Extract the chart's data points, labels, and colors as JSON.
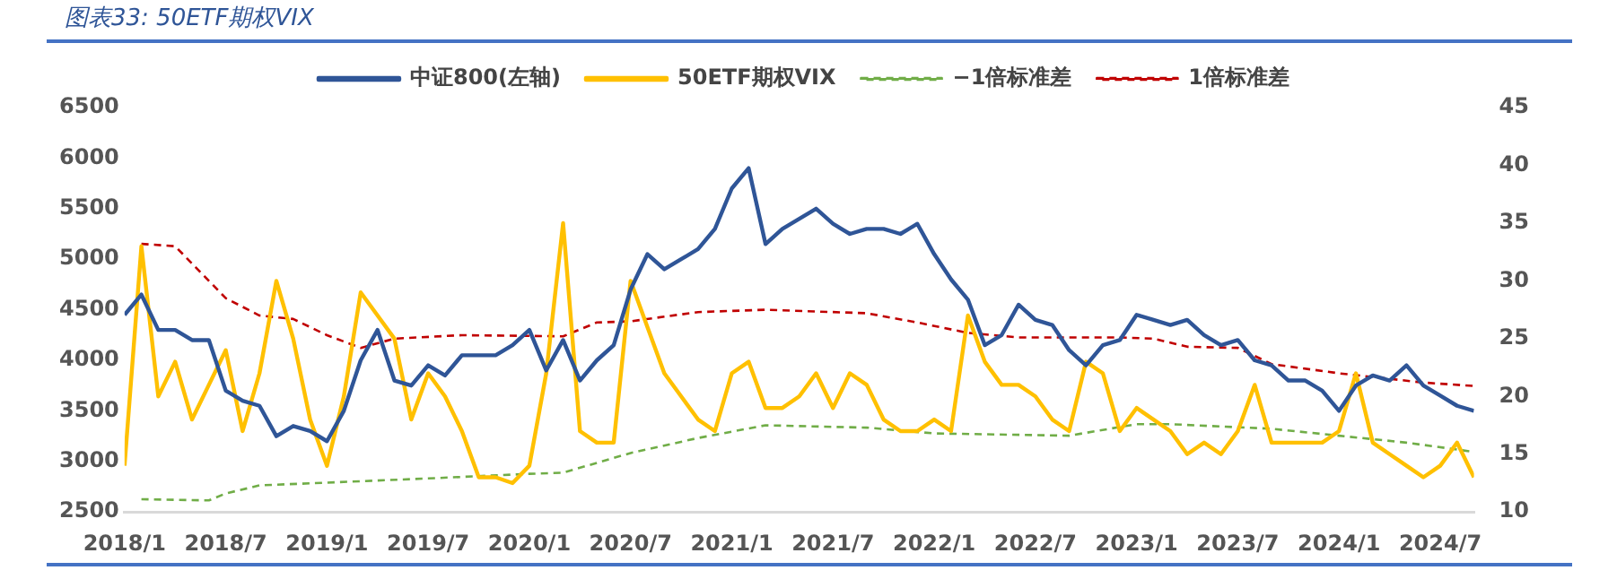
{
  "chart_data": {
    "type": "line",
    "title": "图表33: 50ETF期权VIX",
    "legend": "top",
    "grid": false,
    "line_style": "solid",
    "marker": "none",
    "xlim": [
      "2018-01",
      "2024-09"
    ],
    "xticks": [
      {
        "value": "2018-01",
        "label": "2018/1"
      },
      {
        "value": "2018-07",
        "label": "2018/7"
      },
      {
        "value": "2019-01",
        "label": "2019/1"
      },
      {
        "value": "2019-07",
        "label": "2019/7"
      },
      {
        "value": "2020-01",
        "label": "2020/1"
      },
      {
        "value": "2020-07",
        "label": "2020/7"
      },
      {
        "value": "2021-01",
        "label": "2021/1"
      },
      {
        "value": "2021-07",
        "label": "2021/7"
      },
      {
        "value": "2022-01",
        "label": "2022/1"
      },
      {
        "value": "2022-07",
        "label": "2022/7"
      },
      {
        "value": "2023-01",
        "label": "2023/1"
      },
      {
        "value": "2023-07",
        "label": "2023/7"
      },
      {
        "value": "2024-01",
        "label": "2024/1"
      },
      {
        "value": "2024-07",
        "label": "2024/7"
      }
    ],
    "ylim": [
      2500,
      6500
    ],
    "yticks": [
      2500,
      3000,
      3500,
      4000,
      4500,
      5000,
      5500,
      6000,
      6500
    ],
    "y2lim": [
      10,
      45
    ],
    "y2ticks": [
      10,
      15,
      20,
      25,
      30,
      35,
      40,
      45
    ],
    "series": [
      {
        "name": "中证800(左轴)",
        "color": "#2f5597",
        "x": [
          "2018-01",
          "2018-02",
          "2018-03",
          "2018-04",
          "2018-05",
          "2018-06",
          "2018-07",
          "2018-08",
          "2018-09",
          "2018-10",
          "2018-11",
          "2018-12",
          "2019-01",
          "2019-02",
          "2019-03",
          "2019-04",
          "2019-05",
          "2019-06",
          "2019-07",
          "2019-08",
          "2019-09",
          "2019-10",
          "2019-11",
          "2019-12",
          "2020-01",
          "2020-02",
          "2020-03",
          "2020-04",
          "2020-05",
          "2020-06",
          "2020-07",
          "2020-08",
          "2020-09",
          "2020-10",
          "2020-11",
          "2020-12",
          "2021-01",
          "2021-02",
          "2021-03",
          "2021-04",
          "2021-05",
          "2021-06",
          "2021-07",
          "2021-08",
          "2021-09",
          "2021-10",
          "2021-11",
          "2021-12",
          "2022-01",
          "2022-02",
          "2022-03",
          "2022-04",
          "2022-05",
          "2022-06",
          "2022-07",
          "2022-08",
          "2022-09",
          "2022-10",
          "2022-11",
          "2022-12",
          "2023-01",
          "2023-02",
          "2023-03",
          "2023-04",
          "2023-05",
          "2023-06",
          "2023-07",
          "2023-08",
          "2023-09",
          "2023-10",
          "2023-11",
          "2023-12",
          "2024-01",
          "2024-02",
          "2024-03",
          "2024-04",
          "2024-05",
          "2024-06",
          "2024-07",
          "2024-08",
          "2024-09"
        ],
        "values": [
          4450,
          4650,
          4300,
          4300,
          4200,
          4200,
          3700,
          3600,
          3550,
          3250,
          3350,
          3300,
          3200,
          3500,
          4000,
          4300,
          3800,
          3750,
          3950,
          3850,
          4050,
          4050,
          4050,
          4150,
          4300,
          3900,
          4200,
          3800,
          4000,
          4150,
          4700,
          5050,
          4900,
          5000,
          5100,
          5300,
          5700,
          5900,
          5150,
          5300,
          5400,
          5500,
          5350,
          5250,
          5300,
          5300,
          5250,
          5350,
          5050,
          4800,
          4600,
          4150,
          4250,
          4550,
          4400,
          4350,
          4100,
          3950,
          4150,
          4200,
          4450,
          4400,
          4350,
          4400,
          4250,
          4150,
          4200,
          4000,
          3950,
          3800,
          3800,
          3700,
          3500,
          3750,
          3850,
          3800,
          3950,
          3750,
          3650,
          3550,
          3500
        ]
      },
      {
        "name": "50ETF期权VIX",
        "color": "#ffc000",
        "axis": "y2",
        "x": [
          "2018-01",
          "2018-02",
          "2018-03",
          "2018-04",
          "2018-05",
          "2018-06",
          "2018-07",
          "2018-08",
          "2018-09",
          "2018-10",
          "2018-11",
          "2018-12",
          "2019-01",
          "2019-02",
          "2019-03",
          "2019-04",
          "2019-05",
          "2019-06",
          "2019-07",
          "2019-08",
          "2019-09",
          "2019-10",
          "2019-11",
          "2019-12",
          "2020-01",
          "2020-02",
          "2020-03",
          "2020-04",
          "2020-05",
          "2020-06",
          "2020-07",
          "2020-08",
          "2020-09",
          "2020-10",
          "2020-11",
          "2020-12",
          "2021-01",
          "2021-02",
          "2021-03",
          "2021-04",
          "2021-05",
          "2021-06",
          "2021-07",
          "2021-08",
          "2021-09",
          "2021-10",
          "2021-11",
          "2021-12",
          "2022-01",
          "2022-02",
          "2022-03",
          "2022-04",
          "2022-05",
          "2022-06",
          "2022-07",
          "2022-08",
          "2022-09",
          "2022-10",
          "2022-11",
          "2022-12",
          "2023-01",
          "2023-02",
          "2023-03",
          "2023-04",
          "2023-05",
          "2023-06",
          "2023-07",
          "2023-08",
          "2023-09",
          "2023-10",
          "2023-11",
          "2023-12",
          "2024-01",
          "2024-02",
          "2024-03",
          "2024-04",
          "2024-05",
          "2024-06",
          "2024-07",
          "2024-08",
          "2024-09"
        ],
        "values": [
          14,
          33,
          20,
          23,
          18,
          21,
          24,
          17,
          22,
          30,
          25,
          18,
          14,
          20,
          29,
          27,
          25,
          18,
          22,
          20,
          17,
          13,
          13,
          12.5,
          14,
          22,
          35,
          17,
          16,
          16,
          30,
          26,
          22,
          20,
          18,
          17,
          22,
          23,
          19,
          19,
          20,
          22,
          19,
          22,
          21,
          18,
          17,
          17,
          18,
          17,
          27,
          23,
          21,
          21,
          20,
          18,
          17,
          23,
          22,
          17,
          19,
          18,
          17,
          15,
          16,
          15,
          17,
          21,
          16,
          16,
          16,
          16,
          17,
          22,
          16,
          15,
          14,
          13,
          14,
          16,
          13
        ]
      },
      {
        "name": "−1倍标准差",
        "color": "#70ad47",
        "axis": "y2",
        "line_style": "dashed",
        "x": [
          "2018-02",
          "2018-06",
          "2018-07",
          "2018-09",
          "2019-07",
          "2020-01",
          "2020-03",
          "2020-07",
          "2020-11",
          "2021-03",
          "2021-09",
          "2022-01",
          "2022-09",
          "2023-01",
          "2023-03",
          "2023-09",
          "2024-01",
          "2024-05",
          "2024-09"
        ],
        "values": [
          11.1,
          11,
          11.6,
          12.3,
          12.9,
          13.3,
          13.4,
          15.1,
          16.4,
          17.5,
          17.3,
          16.8,
          16.6,
          17.6,
          17.6,
          17.2,
          16.6,
          16,
          15.2
        ]
      },
      {
        "name": "1倍标准差",
        "color": "#c00000",
        "axis": "y2",
        "line_style": "dashed",
        "x": [
          "2018-02",
          "2018-04",
          "2018-06",
          "2018-07",
          "2018-09",
          "2018-11",
          "2019-01",
          "2019-03",
          "2019-05",
          "2019-09",
          "2020-03",
          "2020-05",
          "2020-07",
          "2020-11",
          "2021-03",
          "2021-09",
          "2021-12",
          "2022-03",
          "2022-06",
          "2022-12",
          "2023-02",
          "2023-04",
          "2023-07",
          "2023-09",
          "2024-01",
          "2024-06",
          "2024-09"
        ],
        "values": [
          33.2,
          33,
          30,
          28.5,
          27,
          26.7,
          25.3,
          24.2,
          25,
          25.3,
          25.2,
          26.4,
          26.5,
          27.3,
          27.5,
          27.2,
          26.4,
          25.5,
          25.1,
          25.1,
          25,
          24.3,
          24.2,
          22.8,
          22,
          21.2,
          20.9
        ]
      }
    ]
  }
}
